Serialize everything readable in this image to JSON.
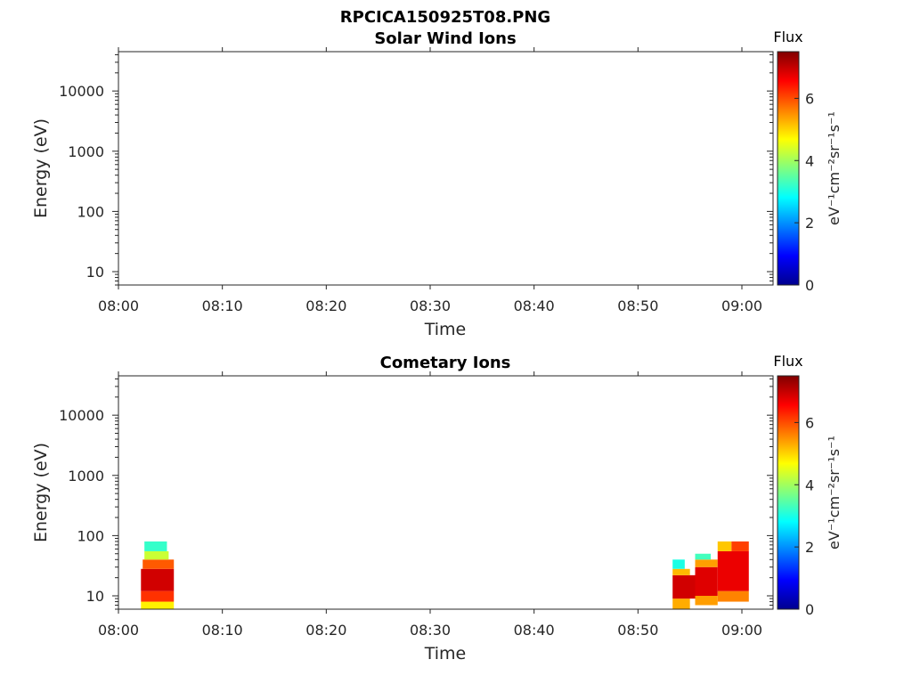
{
  "figure": {
    "filename": "RPCICA150925T08.PNG"
  },
  "chart_data": [
    {
      "type": "heatmap",
      "title": "Solar Wind Ions",
      "xlabel": "Time",
      "ylabel": "Energy (eV)",
      "x_ticks": [
        "08:00",
        "08:10",
        "08:20",
        "08:30",
        "08:40",
        "08:50",
        "09:00"
      ],
      "x_range": [
        "08:00",
        "09:03"
      ],
      "y_scale": "log",
      "y_ticks": [
        "10",
        "100",
        "1000",
        "10000"
      ],
      "y_range": [
        6,
        45000
      ],
      "colorbar": {
        "label": "Flux",
        "unit": "eV⁻¹cm⁻²sr⁻¹s⁻¹",
        "ticks": [
          "0",
          "2",
          "4",
          "6"
        ],
        "range": [
          0,
          7.5
        ],
        "colormap": "jet"
      },
      "blocks": []
    },
    {
      "type": "heatmap",
      "title": "Cometary Ions",
      "xlabel": "Time",
      "ylabel": "Energy (eV)",
      "x_ticks": [
        "08:00",
        "08:10",
        "08:20",
        "08:30",
        "08:40",
        "08:50",
        "09:00"
      ],
      "x_range": [
        "08:00",
        "09:03"
      ],
      "y_scale": "log",
      "y_ticks": [
        "10",
        "100",
        "1000",
        "10000"
      ],
      "y_range": [
        6,
        45000
      ],
      "colorbar": {
        "label": "Flux",
        "unit": "eV⁻¹cm⁻²sr⁻¹s⁻¹",
        "ticks": [
          "0",
          "2",
          "4",
          "6"
        ],
        "range": [
          0,
          7.5
        ],
        "colormap": "jet"
      },
      "blocks": [
        {
          "t0": "08:02:10",
          "t1": "08:05:20",
          "e0": 6,
          "e1": 8,
          "flux": 4.8
        },
        {
          "t0": "08:02:10",
          "t1": "08:05:20",
          "e0": 8,
          "e1": 12,
          "flux": 6.2
        },
        {
          "t0": "08:02:10",
          "t1": "08:05:20",
          "e0": 12,
          "e1": 28,
          "flux": 6.9
        },
        {
          "t0": "08:02:20",
          "t1": "08:05:20",
          "e0": 28,
          "e1": 40,
          "flux": 5.9
        },
        {
          "t0": "08:02:30",
          "t1": "08:04:50",
          "e0": 40,
          "e1": 55,
          "flux": 4.3
        },
        {
          "t0": "08:02:30",
          "t1": "08:04:40",
          "e0": 55,
          "e1": 80,
          "flux": 3.2
        },
        {
          "t0": "08:53:20",
          "t1": "08:55:00",
          "e0": 6,
          "e1": 9,
          "flux": 5.3
        },
        {
          "t0": "08:53:20",
          "t1": "08:55:30",
          "e0": 9,
          "e1": 22,
          "flux": 6.9
        },
        {
          "t0": "08:53:20",
          "t1": "08:55:00",
          "e0": 22,
          "e1": 28,
          "flux": 5.2
        },
        {
          "t0": "08:53:20",
          "t1": "08:54:30",
          "e0": 28,
          "e1": 40,
          "flux": 3.0
        },
        {
          "t0": "08:55:30",
          "t1": "08:57:40",
          "e0": 7,
          "e1": 10,
          "flux": 5.4
        },
        {
          "t0": "08:55:30",
          "t1": "08:57:40",
          "e0": 10,
          "e1": 30,
          "flux": 6.8
        },
        {
          "t0": "08:55:30",
          "t1": "08:57:40",
          "e0": 30,
          "e1": 40,
          "flux": 5.4
        },
        {
          "t0": "08:55:30",
          "t1": "08:57:00",
          "e0": 40,
          "e1": 50,
          "flux": 3.3
        },
        {
          "t0": "08:57:40",
          "t1": "09:00:40",
          "e0": 8,
          "e1": 12,
          "flux": 5.6
        },
        {
          "t0": "08:57:40",
          "t1": "09:00:40",
          "e0": 12,
          "e1": 55,
          "flux": 6.7
        },
        {
          "t0": "08:57:40",
          "t1": "08:59:00",
          "e0": 55,
          "e1": 80,
          "flux": 5.1
        },
        {
          "t0": "08:59:00",
          "t1": "09:00:40",
          "e0": 55,
          "e1": 80,
          "flux": 6.1
        }
      ]
    }
  ]
}
